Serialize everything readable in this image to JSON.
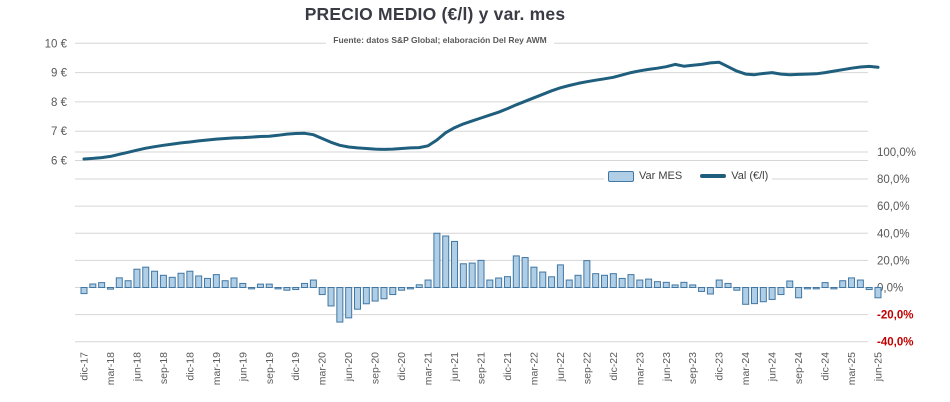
{
  "chart_data": {
    "type": "combo-bar-line",
    "title": "PRECIO MEDIO (€/l) y var. mes",
    "subtitle": "Fuente: datos S&P Global; elaboración Del Rey AWM",
    "legend_position": "middle-right",
    "grid": true,
    "categories": [
      "dic-17",
      "ene-18",
      "feb-18",
      "mar-18",
      "abr-18",
      "may-18",
      "jun-18",
      "jul-18",
      "ago-18",
      "sep-18",
      "oct-18",
      "nov-18",
      "dic-18",
      "ene-19",
      "feb-19",
      "mar-19",
      "abr-19",
      "may-19",
      "jun-19",
      "jul-19",
      "ago-19",
      "sep-19",
      "oct-19",
      "nov-19",
      "dic-19",
      "ene-20",
      "feb-20",
      "mar-20",
      "abr-20",
      "may-20",
      "jun-20",
      "jul-20",
      "ago-20",
      "sep-20",
      "oct-20",
      "nov-20",
      "dic-20",
      "ene-21",
      "feb-21",
      "mar-21",
      "abr-21",
      "may-21",
      "jun-21",
      "jul-21",
      "ago-21",
      "sep-21",
      "oct-21",
      "nov-21",
      "dic-21",
      "ene-22",
      "feb-22",
      "mar-22",
      "abr-22",
      "may-22",
      "jun-22",
      "jul-22",
      "ago-22",
      "sep-22",
      "oct-22",
      "nov-22",
      "dic-22",
      "ene-23",
      "feb-23",
      "mar-23",
      "abr-23",
      "may-23",
      "jun-23",
      "jul-23",
      "ago-23",
      "sep-23",
      "oct-23",
      "nov-23",
      "dic-23",
      "ene-24",
      "feb-24",
      "mar-24",
      "abr-24",
      "may-24",
      "jun-24",
      "jul-24",
      "ago-24",
      "sep-24",
      "oct-24",
      "nov-24",
      "dic-24",
      "ene-25",
      "feb-25",
      "mar-25",
      "abr-25",
      "may-25",
      "jun-25"
    ],
    "x_tick_labels_visible": [
      "dic-17",
      "mar-18",
      "jun-18",
      "sep-18",
      "dic-18",
      "mar-19",
      "jun-19",
      "sep-19",
      "dic-19",
      "mar-20",
      "jun-20",
      "sep-20",
      "dic-20",
      "mar-21",
      "jun-21",
      "sep-21",
      "dic-21",
      "mar-22",
      "jun-22",
      "sep-22",
      "dic-22",
      "mar-23",
      "jun-23",
      "sep-23",
      "dic-23",
      "mar-24",
      "jun-24",
      "sep-24",
      "dic-24",
      "mar-25",
      "jun-25"
    ],
    "series": [
      {
        "name": "Var MES",
        "type": "bar",
        "axis": "right",
        "unit": "%",
        "values": [
          -4.5,
          2.6,
          3.6,
          -1.2,
          7.1,
          5.0,
          13.5,
          15.0,
          12.0,
          9.0,
          7.5,
          10.5,
          12.0,
          8.5,
          6.7,
          9.5,
          5.0,
          7.0,
          3.0,
          -1.0,
          2.5,
          2.5,
          -1.0,
          -2.0,
          -1.5,
          3.0,
          5.5,
          -5.2,
          -13.6,
          -25.5,
          -22.4,
          -16.0,
          -12.0,
          -10.0,
          -8.3,
          -5.2,
          -2.0,
          -1.0,
          2.0,
          5.5,
          40.0,
          38.0,
          34.0,
          17.5,
          18.0,
          20.0,
          5.5,
          7.0,
          8.0,
          23.3,
          22.1,
          15.0,
          11.4,
          7.9,
          16.7,
          5.5,
          9.0,
          19.8,
          10.2,
          9.0,
          10.2,
          6.7,
          9.5,
          5.5,
          6.2,
          4.3,
          3.8,
          1.9,
          3.8,
          1.9,
          -2.9,
          -4.8,
          5.5,
          3.0,
          -2.0,
          -12.4,
          -11.9,
          -10.5,
          -8.8,
          -5.2,
          4.8,
          -7.6,
          -1.0,
          -1.0,
          3.6,
          -1.0,
          5.0,
          7.1,
          5.5,
          -1.5,
          -7.6
        ]
      },
      {
        "name": "Val (€/l)",
        "type": "line",
        "axis": "left",
        "unit": "€/l",
        "values": [
          6.05,
          6.07,
          6.1,
          6.14,
          6.21,
          6.28,
          6.35,
          6.42,
          6.47,
          6.52,
          6.56,
          6.6,
          6.63,
          6.67,
          6.7,
          6.73,
          6.75,
          6.77,
          6.78,
          6.8,
          6.82,
          6.83,
          6.86,
          6.9,
          6.92,
          6.93,
          6.88,
          6.75,
          6.62,
          6.52,
          6.46,
          6.43,
          6.41,
          6.39,
          6.38,
          6.39,
          6.41,
          6.43,
          6.44,
          6.5,
          6.7,
          6.95,
          7.12,
          7.25,
          7.35,
          7.45,
          7.55,
          7.65,
          7.77,
          7.9,
          8.02,
          8.14,
          8.26,
          8.38,
          8.48,
          8.56,
          8.63,
          8.69,
          8.74,
          8.79,
          8.84,
          8.92,
          9.0,
          9.06,
          9.11,
          9.15,
          9.2,
          9.28,
          9.22,
          9.25,
          9.28,
          9.33,
          9.35,
          9.2,
          9.05,
          8.95,
          8.93,
          8.97,
          9.0,
          8.95,
          8.93,
          8.94,
          8.95,
          8.96,
          9.0,
          9.05,
          9.1,
          9.15,
          9.19,
          9.21,
          9.18
        ]
      }
    ],
    "left_axis": {
      "title": "",
      "range": [
        6,
        10
      ],
      "ticks": [
        {
          "label": "10 €",
          "value": 10
        },
        {
          "label": "9 €",
          "value": 9
        },
        {
          "label": "8 €",
          "value": 8
        },
        {
          "label": "7 €",
          "value": 7
        },
        {
          "label": "6 €",
          "value": 6
        }
      ]
    },
    "right_axis": {
      "title": "",
      "range": [
        -40,
        100
      ],
      "ticks": [
        {
          "label": "100,0%",
          "value": 100
        },
        {
          "label": "80,0%",
          "value": 80
        },
        {
          "label": "60,0%",
          "value": 60
        },
        {
          "label": "40,0%",
          "value": 40
        },
        {
          "label": "20,0%",
          "value": 20
        },
        {
          "label": "0,0%",
          "value": 0
        },
        {
          "label": "-20,0%",
          "value": -20
        },
        {
          "label": "-40,0%",
          "value": -40
        }
      ]
    },
    "colors": {
      "bar_fill": "#b0cfe6",
      "bar_stroke": "#4177a3",
      "line": "#1f5f7d",
      "gridline": "#d6d6d6",
      "axis_label": "#595959",
      "negative_label": "#c00000",
      "title": "#3b3b45",
      "legend_text": "#404040"
    }
  }
}
